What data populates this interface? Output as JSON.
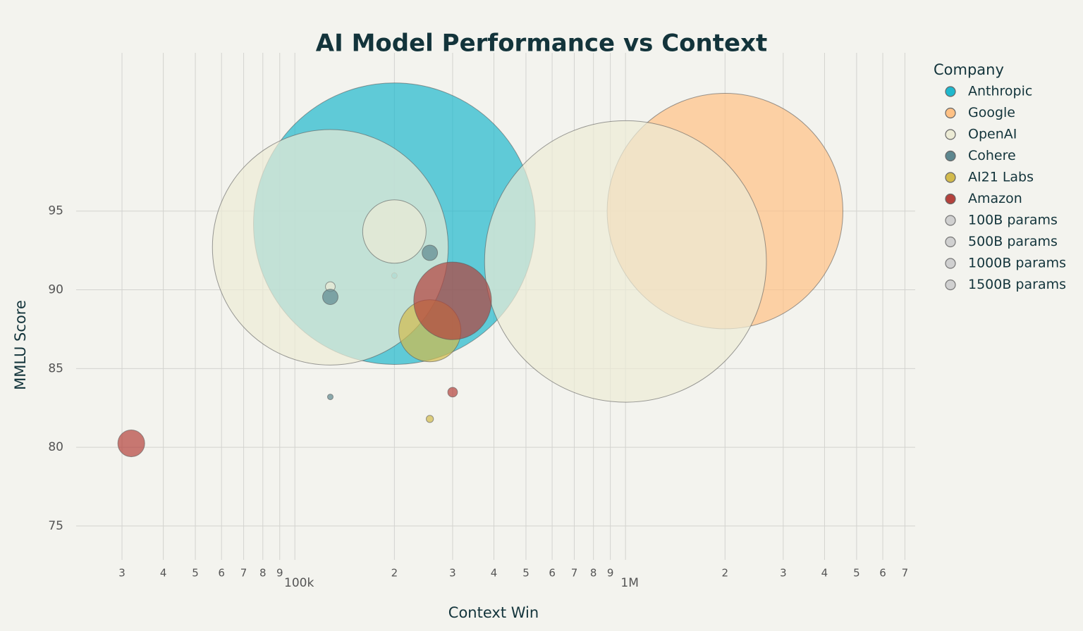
{
  "chart_data": {
    "type": "bubble",
    "title": "AI Model Performance vs Context",
    "x_label": "Context Win",
    "y_label": "MMLU Score",
    "legend_title": "Company",
    "xscale": "log",
    "grid": true,
    "xlim": [
      21800,
      7520000
    ],
    "ylim": [
      72.85,
      105.05
    ],
    "xticks": [
      {
        "value": 30000,
        "label": "3"
      },
      {
        "value": 40000,
        "label": "4"
      },
      {
        "value": 50000,
        "label": "5"
      },
      {
        "value": 60000,
        "label": "6"
      },
      {
        "value": 70000,
        "label": "7"
      },
      {
        "value": 80000,
        "label": "8"
      },
      {
        "value": 90000,
        "label": "9"
      },
      {
        "value": 100000,
        "label": "100k"
      },
      {
        "value": 200000,
        "label": "2"
      },
      {
        "value": 300000,
        "label": "3"
      },
      {
        "value": 400000,
        "label": "4"
      },
      {
        "value": 500000,
        "label": "5"
      },
      {
        "value": 600000,
        "label": "6"
      },
      {
        "value": 700000,
        "label": "7"
      },
      {
        "value": 800000,
        "label": "8"
      },
      {
        "value": 900000,
        "label": "9"
      },
      {
        "value": 1000000,
        "label": "1M"
      },
      {
        "value": 2000000,
        "label": "2"
      },
      {
        "value": 3000000,
        "label": "3"
      },
      {
        "value": 4000000,
        "label": "4"
      },
      {
        "value": 5000000,
        "label": "5"
      },
      {
        "value": 6000000,
        "label": "6"
      },
      {
        "value": 7000000,
        "label": "7"
      }
    ],
    "yticks": [
      75,
      80,
      85,
      90,
      95
    ],
    "series": [
      {
        "name": "Anthropic",
        "color": "#1FB8CD",
        "x": [
          200000,
          200000
        ],
        "values": [
          94.2,
          90.9
        ],
        "sizes": [
          1500,
          0.6
        ]
      },
      {
        "name": "Google",
        "color": "#FFC185",
        "x": [
          2000000
        ],
        "values": [
          95.0
        ],
        "sizes": [
          1050
        ]
      },
      {
        "name": "OpenAI",
        "color": "#ECEBD5",
        "x": [
          128000,
          1000000,
          200000,
          128000
        ],
        "values": [
          92.7,
          91.8,
          93.7,
          90.2
        ],
        "sizes": [
          1050,
          1500,
          76,
          1.8
        ]
      },
      {
        "name": "Cohere",
        "color": "#5D878F",
        "x": [
          256000,
          128000,
          128000
        ],
        "values": [
          92.35,
          89.55,
          83.2
        ],
        "sizes": [
          4.5,
          4.5,
          0.6
        ]
      },
      {
        "name": "AI21 Labs",
        "color": "#D2BA4C",
        "x": [
          256000,
          256000
        ],
        "values": [
          87.4,
          81.8
        ],
        "sizes": [
          73,
          1
        ]
      },
      {
        "name": "Amazon",
        "color": "#B4413C",
        "x": [
          300000,
          300000,
          32000
        ],
        "values": [
          89.3,
          83.5,
          80.25
        ],
        "sizes": [
          114,
          1.8,
          13.6
        ]
      }
    ],
    "size_legend": [
      "100B params",
      "500B params",
      "1000B params",
      "1500B params"
    ],
    "size_legend_color": "#d0d0d0"
  }
}
